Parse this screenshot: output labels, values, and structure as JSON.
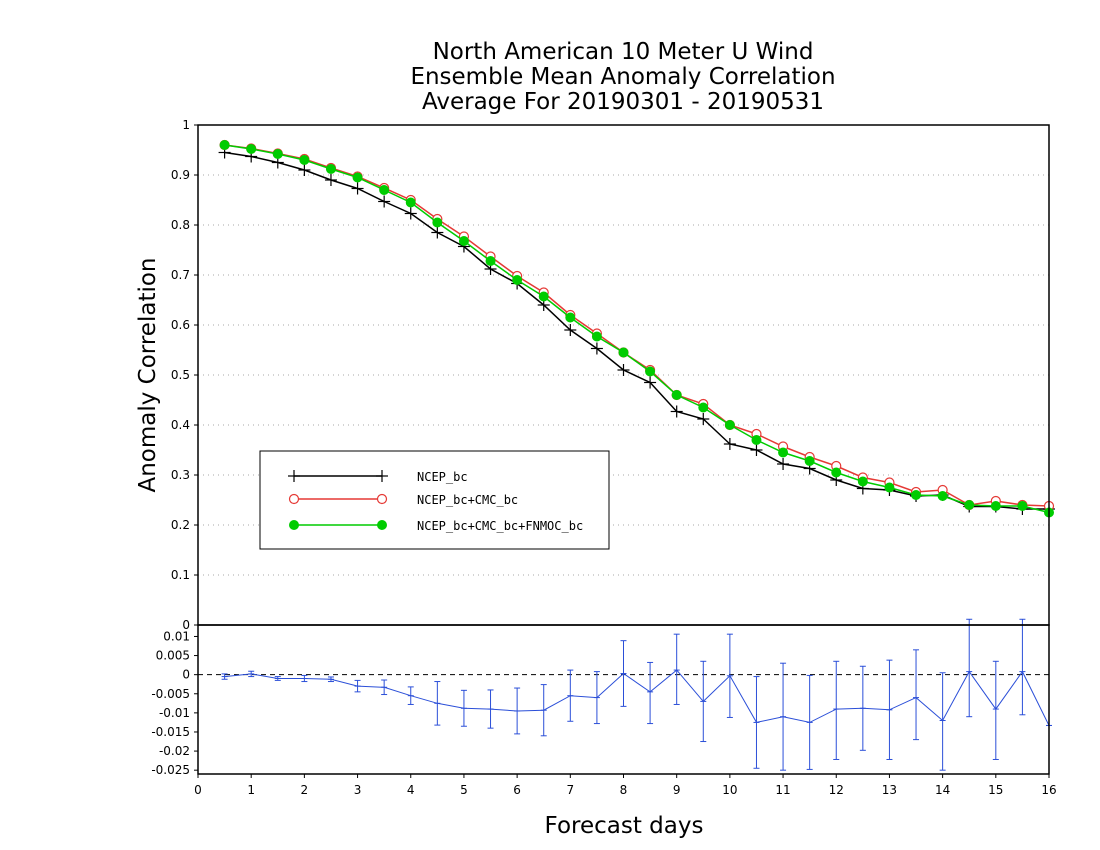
{
  "title_lines": [
    "North American 10 Meter U Wind",
    "Ensemble Mean Anomaly Correlation",
    "Average For 20190301 - 20190531"
  ],
  "colors": {
    "ncep_bc": "#000000",
    "ncep_cmc": "#e53935",
    "ncep_cmc_fnmoc": "#00cc00",
    "difference": "#2b4fd8",
    "grid": "#aaaaaa"
  },
  "chart_data": [
    {
      "type": "line",
      "title": "North American 10 Meter U Wind Ensemble Mean Anomaly Correlation Average For 20190301 - 20190531",
      "xlabel": "Forecast days",
      "ylabel": "Anomaly Correlation",
      "xlim": [
        0,
        16
      ],
      "ylim": [
        0,
        1
      ],
      "yticks": [
        "0",
        "0.1",
        "0.2",
        "0.3",
        "0.4",
        "0.5",
        "0.6",
        "0.7",
        "0.8",
        "0.9",
        "1"
      ],
      "grid": true,
      "legend_position": "center-left",
      "x": [
        0.5,
        1,
        1.5,
        2,
        2.5,
        3,
        3.5,
        4,
        4.5,
        5,
        5.5,
        6,
        6.5,
        7,
        7.5,
        8,
        8.5,
        9,
        9.5,
        10,
        10.5,
        11,
        11.5,
        12,
        12.5,
        13,
        13.5,
        14,
        14.5,
        15,
        15.5,
        16
      ],
      "series": [
        {
          "name": "NCEP_bc",
          "marker": "plus",
          "values": [
            0.945,
            0.937,
            0.925,
            0.91,
            0.89,
            0.873,
            0.847,
            0.823,
            0.785,
            0.757,
            0.712,
            0.683,
            0.64,
            0.59,
            0.553,
            0.51,
            0.485,
            0.427,
            0.412,
            0.362,
            0.35,
            0.322,
            0.313,
            0.29,
            0.273,
            0.27,
            0.258,
            0.26,
            0.237,
            0.237,
            0.232,
            0.232
          ]
        },
        {
          "name": "NCEP_bc+CMC_bc",
          "marker": "open-circle",
          "values": [
            0.96,
            0.953,
            0.943,
            0.932,
            0.914,
            0.897,
            0.874,
            0.85,
            0.812,
            0.777,
            0.737,
            0.698,
            0.665,
            0.62,
            0.583,
            0.545,
            0.51,
            0.46,
            0.442,
            0.4,
            0.382,
            0.357,
            0.336,
            0.318,
            0.295,
            0.285,
            0.266,
            0.27,
            0.24,
            0.248,
            0.24,
            0.238
          ]
        },
        {
          "name": "NCEP_bc+CMC_bc+FNMOC_bc",
          "marker": "filled-circle",
          "values": [
            0.96,
            0.952,
            0.942,
            0.93,
            0.912,
            0.895,
            0.87,
            0.845,
            0.805,
            0.768,
            0.728,
            0.69,
            0.657,
            0.615,
            0.577,
            0.545,
            0.507,
            0.46,
            0.435,
            0.4,
            0.37,
            0.345,
            0.328,
            0.305,
            0.287,
            0.275,
            0.26,
            0.258,
            0.24,
            0.238,
            0.238,
            0.225
          ]
        }
      ]
    },
    {
      "type": "line",
      "xlabel": "Forecast days",
      "xlim": [
        0,
        16
      ],
      "ylim": [
        -0.026,
        0.013
      ],
      "xticks": [
        "0",
        "1",
        "2",
        "3",
        "4",
        "5",
        "6",
        "7",
        "8",
        "9",
        "10",
        "11",
        "12",
        "13",
        "14",
        "15",
        "16"
      ],
      "yticks": [
        "-0.025",
        "-0.02",
        "-0.015",
        "-0.01",
        "-0.005",
        "0",
        "0.005",
        "0.01"
      ],
      "x": [
        0.5,
        1,
        1.5,
        2,
        2.5,
        3,
        3.5,
        4,
        4.5,
        5,
        5.5,
        6,
        6.5,
        7,
        7.5,
        8,
        8.5,
        9,
        9.5,
        10,
        10.5,
        11,
        11.5,
        12,
        12.5,
        13,
        13.5,
        14,
        14.5,
        15,
        15.5,
        16
      ],
      "series": [
        {
          "values": [
            -0.0005,
            0.0002,
            -0.001,
            -0.001,
            -0.0012,
            -0.003,
            -0.0033,
            -0.0055,
            -0.0075,
            -0.0088,
            -0.009,
            -0.0095,
            -0.0093,
            -0.0055,
            -0.006,
            0.0003,
            -0.0045,
            0.0012,
            -0.007,
            -0.0003,
            -0.0125,
            -0.011,
            -0.0125,
            -0.009,
            -0.0088,
            -0.0092,
            -0.006,
            -0.012,
            0.0008,
            -0.009,
            0.0008,
            -0.0133
          ],
          "error_low": [
            -0.0012,
            -0.0005,
            -0.0015,
            -0.0018,
            -0.0018,
            -0.0045,
            -0.0052,
            -0.0078,
            -0.0132,
            -0.0135,
            -0.014,
            -0.0155,
            -0.016,
            -0.0122,
            -0.0128,
            -0.0083,
            -0.0128,
            -0.0078,
            -0.0175,
            -0.0112,
            -0.0245,
            -0.025,
            -0.0248,
            -0.0222,
            -0.0198,
            -0.0222,
            -0.017,
            -0.025,
            -0.011,
            -0.0222,
            -0.0105,
            -0.0133
          ],
          "error_high": [
            0.0002,
            0.0009,
            -0.0005,
            -0.0002,
            -0.0006,
            -0.0015,
            -0.0014,
            -0.0032,
            -0.0018,
            -0.0041,
            -0.004,
            -0.0035,
            -0.0026,
            0.0012,
            0.0008,
            0.0089,
            0.0032,
            0.0106,
            0.0035,
            0.0106,
            -0.0005,
            0.003,
            -0.0002,
            0.0035,
            0.0022,
            0.0038,
            0.0065,
            0.0005,
            0.0145,
            0.0035,
            0.0145,
            -0.0133
          ]
        }
      ]
    }
  ]
}
